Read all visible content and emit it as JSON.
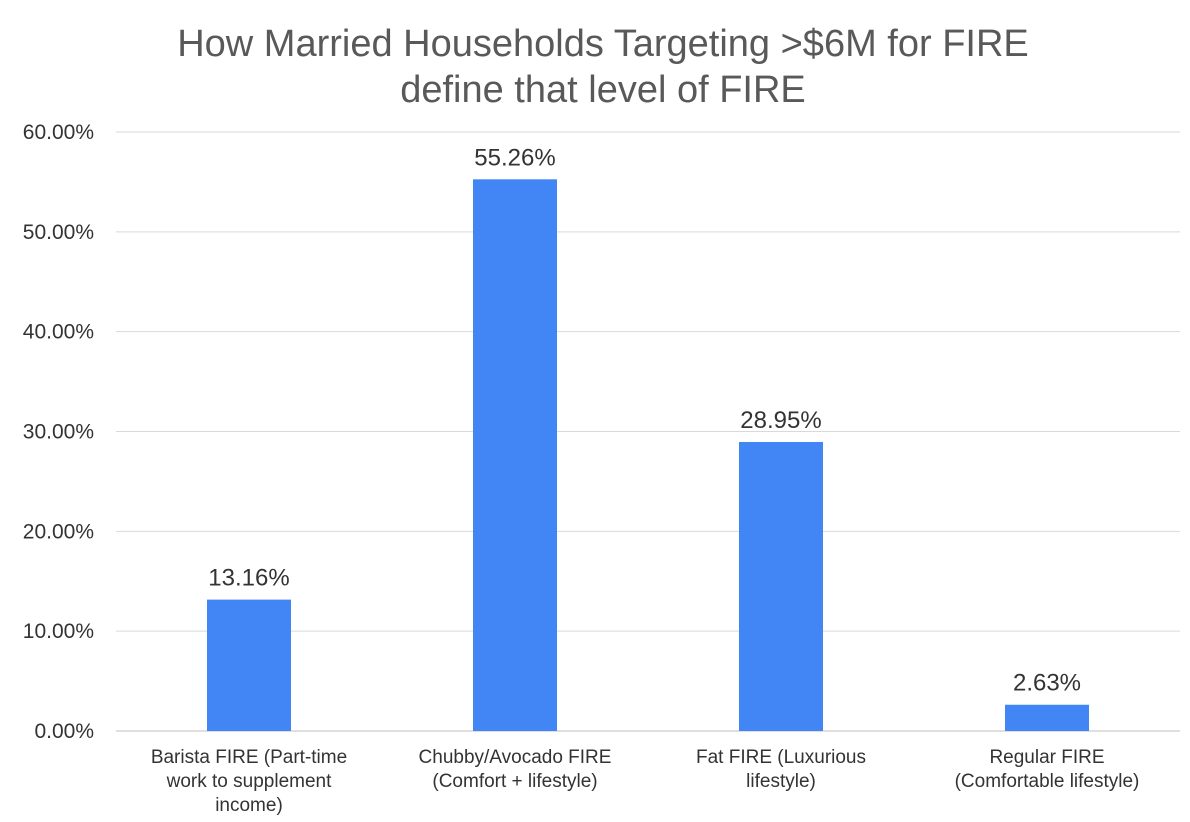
{
  "chart_data": {
    "type": "bar",
    "title_lines": [
      "How Married Households Targeting >$6M for FIRE",
      "define that level of FIRE"
    ],
    "categories": [
      [
        "Barista FIRE (Part-time",
        "work to supplement",
        "income)"
      ],
      [
        "Chubby/Avocado FIRE",
        "(Comfort + lifestyle)"
      ],
      [
        "Fat FIRE (Luxurious",
        "lifestyle)"
      ],
      [
        "Regular FIRE",
        "(Comfortable lifestyle)"
      ]
    ],
    "values": [
      13.16,
      55.26,
      28.95,
      2.63
    ],
    "data_labels": [
      "13.16%",
      "55.26%",
      "28.95%",
      "2.63%"
    ],
    "ylim": [
      0,
      60
    ],
    "y_ticks": [
      0,
      10,
      20,
      30,
      40,
      50,
      60
    ],
    "y_tick_labels": [
      "0.00%",
      "10.00%",
      "20.00%",
      "30.00%",
      "40.00%",
      "50.00%",
      "60.00%"
    ],
    "xlabel": "",
    "ylabel": "",
    "grid": true,
    "legend": "none",
    "colors": {
      "bar": "#4285f4",
      "grid": "#d9d9d9",
      "axis": "#bfbfbf",
      "text": "#333333",
      "title": "#595959"
    }
  }
}
